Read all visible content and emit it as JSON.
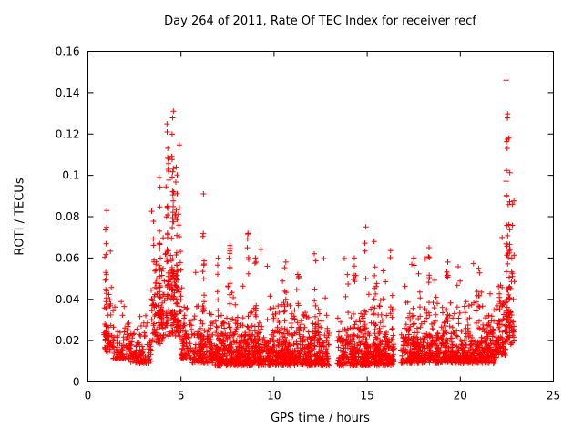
{
  "chart_data": {
    "type": "scatter",
    "title": "Day 264 of 2011, Rate Of TEC Index for receiver recf",
    "xlabel": "GPS time / hours",
    "ylabel": "ROTI / TECUs",
    "xlim": [
      0,
      25
    ],
    "ylim": [
      0,
      0.16
    ],
    "xticks": [
      0,
      5,
      10,
      15,
      20,
      25
    ],
    "xtick_labels": [
      "0",
      "5",
      "10",
      "15",
      "20",
      "25"
    ],
    "yticks": [
      0,
      0.02,
      0.04,
      0.06,
      0.08,
      0.1,
      0.12,
      0.14,
      0.16
    ],
    "ytick_labels": [
      "0",
      "0.02",
      "0.04",
      "0.06",
      "0.08",
      "0.1",
      "0.12",
      "0.14",
      "0.16"
    ],
    "grid": false,
    "legend": "none",
    "marker": "plus",
    "marker_color": "#ff0000",
    "seed": 2641,
    "data_extent": {
      "x_start": 0.85,
      "x_end": 22.9,
      "y_floor": 0.007,
      "y_peak": 0.146
    },
    "bands": [
      {
        "x0": 0.85,
        "x1": 1.35,
        "n": 55,
        "floor": 0.014,
        "scale": 0.012,
        "cap": 0.07
      },
      {
        "x0": 1.35,
        "x1": 2.3,
        "n": 85,
        "floor": 0.011,
        "scale": 0.007,
        "cap": 0.048
      },
      {
        "x0": 2.3,
        "x1": 3.4,
        "n": 110,
        "floor": 0.009,
        "scale": 0.006,
        "cap": 0.04
      },
      {
        "x0": 3.4,
        "x1": 4.05,
        "n": 100,
        "floor": 0.018,
        "scale": 0.02,
        "cap": 0.105
      },
      {
        "x0": 4.05,
        "x1": 5.0,
        "n": 150,
        "floor": 0.022,
        "scale": 0.026,
        "cap": 0.125
      },
      {
        "x0": 5.0,
        "x1": 5.6,
        "n": 70,
        "floor": 0.011,
        "scale": 0.008,
        "cap": 0.05
      },
      {
        "x0": 5.6,
        "x1": 6.6,
        "n": 130,
        "floor": 0.009,
        "scale": 0.007,
        "cap": 0.06
      },
      {
        "x0": 6.6,
        "x1": 9.6,
        "n": 470,
        "floor": 0.008,
        "scale": 0.008,
        "cap": 0.068
      },
      {
        "x0": 9.6,
        "x1": 12.95,
        "n": 500,
        "floor": 0.008,
        "scale": 0.008,
        "cap": 0.06
      },
      {
        "x0": 13.4,
        "x1": 16.45,
        "n": 470,
        "floor": 0.008,
        "scale": 0.009,
        "cap": 0.07
      },
      {
        "x0": 16.8,
        "x1": 20.0,
        "n": 470,
        "floor": 0.009,
        "scale": 0.008,
        "cap": 0.06
      },
      {
        "x0": 20.0,
        "x1": 21.95,
        "n": 300,
        "floor": 0.009,
        "scale": 0.009,
        "cap": 0.058
      },
      {
        "x0": 21.95,
        "x1": 22.45,
        "n": 80,
        "floor": 0.013,
        "scale": 0.013,
        "cap": 0.085
      },
      {
        "x0": 22.45,
        "x1": 22.9,
        "n": 75,
        "floor": 0.018,
        "scale": 0.022,
        "cap": 0.13
      }
    ],
    "columns": [
      {
        "x": 0.97,
        "yMin": 0.018,
        "yMax": 0.083,
        "n": 22
      },
      {
        "x": 3.85,
        "yMin": 0.03,
        "yMax": 0.099,
        "n": 18
      },
      {
        "x": 4.3,
        "yMin": 0.04,
        "yMax": 0.121,
        "n": 22
      },
      {
        "x": 4.55,
        "yMin": 0.05,
        "yMax": 0.131,
        "n": 20
      },
      {
        "x": 4.75,
        "yMin": 0.03,
        "yMax": 0.104,
        "n": 16
      },
      {
        "x": 6.2,
        "yMin": 0.014,
        "yMax": 0.091,
        "n": 18
      },
      {
        "x": 7.0,
        "yMin": 0.012,
        "yMax": 0.06,
        "n": 12
      },
      {
        "x": 7.6,
        "yMin": 0.012,
        "yMax": 0.066,
        "n": 14
      },
      {
        "x": 8.6,
        "yMin": 0.012,
        "yMax": 0.072,
        "n": 14
      },
      {
        "x": 9.0,
        "yMin": 0.012,
        "yMax": 0.06,
        "n": 10
      },
      {
        "x": 10.6,
        "yMin": 0.012,
        "yMax": 0.058,
        "n": 12
      },
      {
        "x": 11.3,
        "yMin": 0.012,
        "yMax": 0.052,
        "n": 10
      },
      {
        "x": 12.2,
        "yMin": 0.012,
        "yMax": 0.062,
        "n": 10
      },
      {
        "x": 14.3,
        "yMin": 0.012,
        "yMax": 0.06,
        "n": 10
      },
      {
        "x": 14.9,
        "yMin": 0.012,
        "yMax": 0.075,
        "n": 14
      },
      {
        "x": 15.4,
        "yMin": 0.012,
        "yMax": 0.068,
        "n": 10
      },
      {
        "x": 17.5,
        "yMin": 0.012,
        "yMax": 0.06,
        "n": 10
      },
      {
        "x": 18.3,
        "yMin": 0.012,
        "yMax": 0.065,
        "n": 12
      },
      {
        "x": 19.3,
        "yMin": 0.012,
        "yMax": 0.058,
        "n": 10
      },
      {
        "x": 21.0,
        "yMin": 0.012,
        "yMax": 0.055,
        "n": 10
      },
      {
        "x": 22.5,
        "yMin": 0.03,
        "yMax": 0.146,
        "n": 22
      },
      {
        "x": 22.62,
        "yMin": 0.04,
        "yMax": 0.118,
        "n": 14
      }
    ]
  }
}
